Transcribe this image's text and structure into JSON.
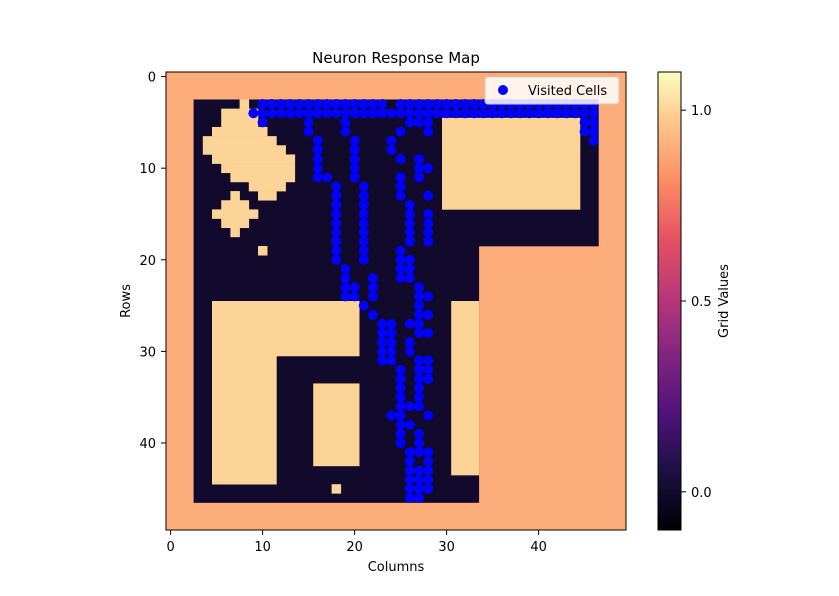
{
  "chart_data": {
    "type": "heatmap",
    "title": "Neuron Response Map",
    "xlabel": "Columns",
    "ylabel": "Rows",
    "grid_size": [
      50,
      50
    ],
    "colormap": "magma",
    "vmin": -0.1,
    "vmax": 1.1,
    "xticks": [
      0,
      10,
      20,
      30,
      40
    ],
    "yticks": [
      0,
      10,
      20,
      30,
      40
    ],
    "colorbar": {
      "label": "Grid Values",
      "ticks": [
        0.0,
        0.5,
        1.0
      ],
      "tick_labels": [
        "0.0",
        "0.5",
        "1.0"
      ]
    },
    "grid": false,
    "legend": {
      "position": "top-right",
      "label": "Visited Cells"
    },
    "values_legend": {
      "background": 0.9,
      "room": 0.0,
      "obstacle": 1.0
    },
    "room_rects": [
      [
        3,
        3,
        33,
        46
      ],
      [
        33,
        3,
        46,
        18
      ]
    ],
    "obstacle_rects": [
      [
        8,
        3,
        8,
        3
      ],
      [
        6,
        4,
        9,
        5
      ],
      [
        5,
        6,
        10,
        6
      ],
      [
        4,
        7,
        11,
        7
      ],
      [
        4,
        8,
        12,
        8
      ],
      [
        5,
        9,
        13,
        9
      ],
      [
        6,
        10,
        13,
        10
      ],
      [
        7,
        11,
        13,
        11
      ],
      [
        9,
        12,
        12,
        12
      ],
      [
        10,
        13,
        11,
        13
      ],
      [
        7,
        13,
        7,
        13
      ],
      [
        6,
        14,
        8,
        14
      ],
      [
        5,
        15,
        9,
        15
      ],
      [
        6,
        16,
        8,
        16
      ],
      [
        7,
        17,
        7,
        17
      ],
      [
        10,
        19,
        10,
        19
      ],
      [
        30,
        5,
        44,
        14
      ],
      [
        5,
        25,
        20,
        30
      ],
      [
        5,
        31,
        11,
        44
      ],
      [
        16,
        34,
        20,
        42
      ],
      [
        18,
        45,
        18,
        45
      ],
      [
        31,
        25,
        33,
        43
      ]
    ],
    "visited_cells": [
      [
        9,
        4
      ],
      [
        10,
        4
      ],
      [
        10,
        5
      ],
      [
        11,
        4
      ],
      [
        12,
        4
      ],
      [
        13,
        4
      ],
      [
        14,
        4
      ],
      [
        15,
        4
      ],
      [
        16,
        4
      ],
      [
        17,
        4
      ],
      [
        18,
        4
      ],
      [
        19,
        4
      ],
      [
        20,
        4
      ],
      [
        21,
        4
      ],
      [
        22,
        4
      ],
      [
        23,
        4
      ],
      [
        24,
        4
      ],
      [
        25,
        4
      ],
      [
        26,
        4
      ],
      [
        27,
        4
      ],
      [
        28,
        4
      ],
      [
        29,
        4
      ],
      [
        30,
        4
      ],
      [
        31,
        4
      ],
      [
        32,
        4
      ],
      [
        33,
        4
      ],
      [
        34,
        4
      ],
      [
        35,
        4
      ],
      [
        36,
        4
      ],
      [
        37,
        4
      ],
      [
        38,
        4
      ],
      [
        39,
        4
      ],
      [
        40,
        4
      ],
      [
        41,
        4
      ],
      [
        42,
        4
      ],
      [
        43,
        4
      ],
      [
        44,
        4
      ],
      [
        45,
        4
      ],
      [
        46,
        4
      ],
      [
        10,
        3
      ],
      [
        11,
        3
      ],
      [
        12,
        3
      ],
      [
        13,
        3
      ],
      [
        14,
        3
      ],
      [
        15,
        3
      ],
      [
        16,
        3
      ],
      [
        17,
        3
      ],
      [
        18,
        3
      ],
      [
        19,
        3
      ],
      [
        20,
        3
      ],
      [
        21,
        3
      ],
      [
        22,
        3
      ],
      [
        23,
        3
      ],
      [
        25,
        3
      ],
      [
        26,
        3
      ],
      [
        27,
        3
      ],
      [
        28,
        3
      ],
      [
        29,
        3
      ],
      [
        30,
        3
      ],
      [
        31,
        3
      ],
      [
        32,
        3
      ],
      [
        33,
        3
      ],
      [
        34,
        3
      ],
      [
        35,
        3
      ],
      [
        36,
        3
      ],
      [
        37,
        3
      ],
      [
        38,
        3
      ],
      [
        39,
        3
      ],
      [
        40,
        3
      ],
      [
        41,
        3
      ],
      [
        42,
        3
      ],
      [
        43,
        3
      ],
      [
        44,
        3
      ],
      [
        45,
        3
      ],
      [
        46,
        3
      ],
      [
        46,
        5
      ],
      [
        46,
        6
      ],
      [
        46,
        7
      ],
      [
        45,
        5
      ],
      [
        45,
        6
      ],
      [
        15,
        5
      ],
      [
        15,
        6
      ],
      [
        16,
        7
      ],
      [
        16,
        8
      ],
      [
        16,
        9
      ],
      [
        16,
        10
      ],
      [
        16,
        11
      ],
      [
        17,
        11
      ],
      [
        19,
        5
      ],
      [
        19,
        6
      ],
      [
        20,
        7
      ],
      [
        20,
        8
      ],
      [
        20,
        9
      ],
      [
        20,
        10
      ],
      [
        20,
        11
      ],
      [
        24,
        7
      ],
      [
        24,
        8
      ],
      [
        25,
        6
      ],
      [
        25,
        9
      ],
      [
        25,
        11
      ],
      [
        25,
        12
      ],
      [
        25,
        13
      ],
      [
        26,
        5
      ],
      [
        27,
        5
      ],
      [
        28,
        5
      ],
      [
        28,
        6
      ],
      [
        27,
        9
      ],
      [
        27,
        10
      ],
      [
        27,
        11
      ],
      [
        28,
        10
      ],
      [
        28,
        13
      ],
      [
        18,
        12
      ],
      [
        18,
        13
      ],
      [
        18,
        14
      ],
      [
        18,
        15
      ],
      [
        18,
        16
      ],
      [
        18,
        17
      ],
      [
        18,
        18
      ],
      [
        18,
        19
      ],
      [
        18,
        20
      ],
      [
        19,
        21
      ],
      [
        19,
        22
      ],
      [
        19,
        23
      ],
      [
        19,
        24
      ],
      [
        20,
        23
      ],
      [
        20,
        24
      ],
      [
        21,
        12
      ],
      [
        21,
        13
      ],
      [
        21,
        14
      ],
      [
        21,
        15
      ],
      [
        21,
        16
      ],
      [
        21,
        17
      ],
      [
        21,
        18
      ],
      [
        21,
        19
      ],
      [
        21,
        20
      ],
      [
        21,
        25
      ],
      [
        22,
        22
      ],
      [
        22,
        23
      ],
      [
        22,
        24
      ],
      [
        22,
        26
      ],
      [
        23,
        27
      ],
      [
        23,
        28
      ],
      [
        23,
        29
      ],
      [
        23,
        30
      ],
      [
        23,
        31
      ],
      [
        24,
        27
      ],
      [
        24,
        28
      ],
      [
        24,
        29
      ],
      [
        24,
        30
      ],
      [
        24,
        31
      ],
      [
        25,
        19
      ],
      [
        25,
        20
      ],
      [
        25,
        21
      ],
      [
        25,
        22
      ],
      [
        25,
        32
      ],
      [
        25,
        33
      ],
      [
        25,
        34
      ],
      [
        25,
        35
      ],
      [
        25,
        36
      ],
      [
        25,
        37
      ],
      [
        25,
        38
      ],
      [
        25,
        39
      ],
      [
        25,
        40
      ],
      [
        26,
        14
      ],
      [
        26,
        15
      ],
      [
        26,
        16
      ],
      [
        26,
        17
      ],
      [
        26,
        18
      ],
      [
        26,
        20
      ],
      [
        26,
        21
      ],
      [
        26,
        22
      ],
      [
        26,
        27
      ],
      [
        26,
        29
      ],
      [
        26,
        30
      ],
      [
        26,
        36
      ],
      [
        26,
        41
      ],
      [
        26,
        42
      ],
      [
        26,
        43
      ],
      [
        26,
        44
      ],
      [
        26,
        45
      ],
      [
        26,
        46
      ],
      [
        27,
        23
      ],
      [
        27,
        24
      ],
      [
        27,
        25
      ],
      [
        27,
        26
      ],
      [
        27,
        27
      ],
      [
        27,
        28
      ],
      [
        27,
        31
      ],
      [
        27,
        32
      ],
      [
        27,
        33
      ],
      [
        27,
        34
      ],
      [
        27,
        35
      ],
      [
        27,
        39
      ],
      [
        27,
        40
      ],
      [
        27,
        41
      ],
      [
        27,
        43
      ],
      [
        27,
        44
      ],
      [
        27,
        45
      ],
      [
        27,
        46
      ],
      [
        28,
        15
      ],
      [
        28,
        16
      ],
      [
        28,
        17
      ],
      [
        28,
        18
      ],
      [
        28,
        24
      ],
      [
        28,
        26
      ],
      [
        28,
        28
      ],
      [
        28,
        31
      ],
      [
        28,
        32
      ],
      [
        28,
        33
      ],
      [
        28,
        37
      ],
      [
        28,
        41
      ],
      [
        28,
        42
      ],
      [
        28,
        43
      ],
      [
        28,
        44
      ],
      [
        28,
        45
      ],
      [
        24,
        37
      ],
      [
        26,
        38
      ],
      [
        27,
        36
      ]
    ]
  }
}
